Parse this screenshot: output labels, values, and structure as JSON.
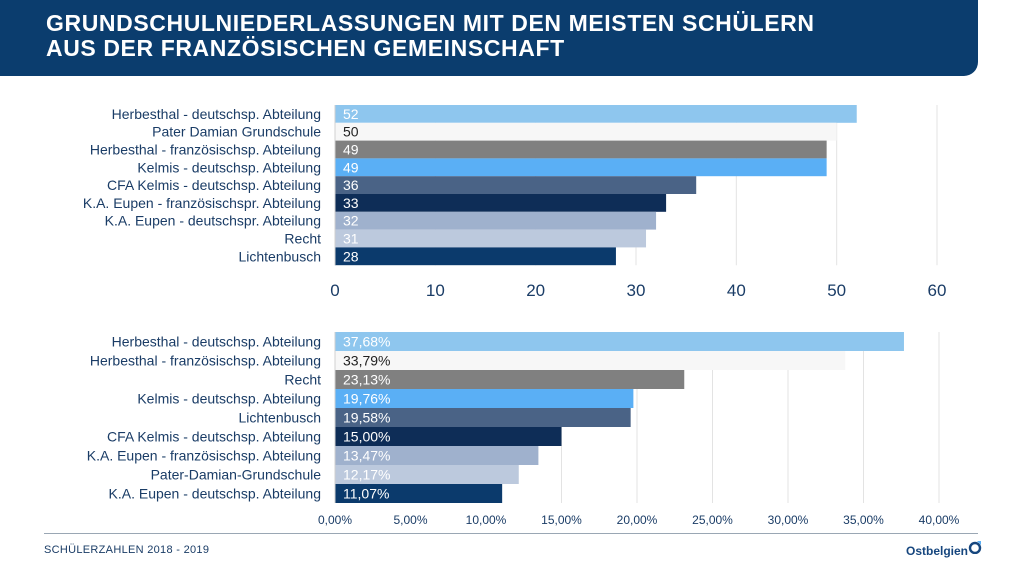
{
  "header": {
    "title_line1": "GRUNDSCHULNIEDERLASSUNGEN MIT DEN MEISTEN SCHÜLERN",
    "title_line2": "AUS DER FRANZÖSISCHEN GEMEINSCHAFT"
  },
  "footer": {
    "text": "SCHÜLERZAHLEN 2018 - 2019",
    "logo": "Ostbelgien"
  },
  "chart_data": [
    {
      "type": "bar",
      "orientation": "horizontal",
      "categories": [
        "Herbesthal - deutschsp. Abteilung",
        "Pater Damian Grundschule",
        "Herbesthal - französischsp. Abteilung",
        "Kelmis - deutschsp. Abteilung",
        "CFA Kelmis - deutschsp. Abteilung",
        "K.A. Eupen - französischspr. Abteilung",
        "K.A. Eupen - deutschspr. Abteilung",
        "Recht",
        "Lichtenbusch"
      ],
      "values": [
        52,
        50,
        49,
        49,
        36,
        33,
        32,
        31,
        28
      ],
      "data_labels": [
        "52",
        "50",
        "49",
        "49",
        "36",
        "33",
        "32",
        "31",
        "28"
      ],
      "colors": [
        "#8ec6ee",
        "#f7f7f7",
        "#808080",
        "#5aaff5",
        "#4a6386",
        "#0e2d57",
        "#9fb1cd",
        "#bcc9dd",
        "#0b3a6c"
      ],
      "label_colors": [
        "#ffffff",
        "#1f1f1f",
        "#ffffff",
        "#ffffff",
        "#ffffff",
        "#ffffff",
        "#ffffff",
        "#ffffff",
        "#ffffff"
      ],
      "xlim": [
        0,
        60
      ],
      "xticks": [
        0,
        10,
        20,
        30,
        40,
        50,
        60
      ],
      "xtick_labels": [
        "0",
        "10",
        "20",
        "30",
        "40",
        "50",
        "60"
      ],
      "grid": true
    },
    {
      "type": "bar",
      "orientation": "horizontal",
      "categories": [
        "Herbesthal - deutschsp. Abteilung",
        "Herbesthal - französischsp. Abteilung",
        "Recht",
        "Kelmis - deutschsp. Abteilung",
        "Lichtenbusch",
        "CFA Kelmis - deutschsp. Abteilung",
        "K.A. Eupen - französischsp. Abteilung",
        "Pater-Damian-Grundschule",
        "K.A. Eupen - deutschsp. Abteilung"
      ],
      "values": [
        37.68,
        33.79,
        23.13,
        19.76,
        19.58,
        15.0,
        13.47,
        12.17,
        11.07
      ],
      "data_labels": [
        "37,68%",
        "33,79%",
        "23,13%",
        "19,76%",
        "19,58%",
        "15,00%",
        "13,47%",
        "12,17%",
        "11,07%"
      ],
      "colors": [
        "#8ec6ee",
        "#f7f7f7",
        "#808080",
        "#5aaff5",
        "#4a6386",
        "#0e2d57",
        "#9fb1cd",
        "#bcc9dd",
        "#0b3a6c"
      ],
      "label_colors": [
        "#ffffff",
        "#1f1f1f",
        "#ffffff",
        "#ffffff",
        "#ffffff",
        "#ffffff",
        "#ffffff",
        "#ffffff",
        "#ffffff"
      ],
      "xlim": [
        0,
        40
      ],
      "xticks": [
        0,
        5,
        10,
        15,
        20,
        25,
        30,
        35,
        40
      ],
      "xtick_labels": [
        "0,00%",
        "5,00%",
        "10,00%",
        "15,00%",
        "20,00%",
        "25,00%",
        "30,00%",
        "35,00%",
        "40,00%"
      ],
      "grid": true
    }
  ]
}
